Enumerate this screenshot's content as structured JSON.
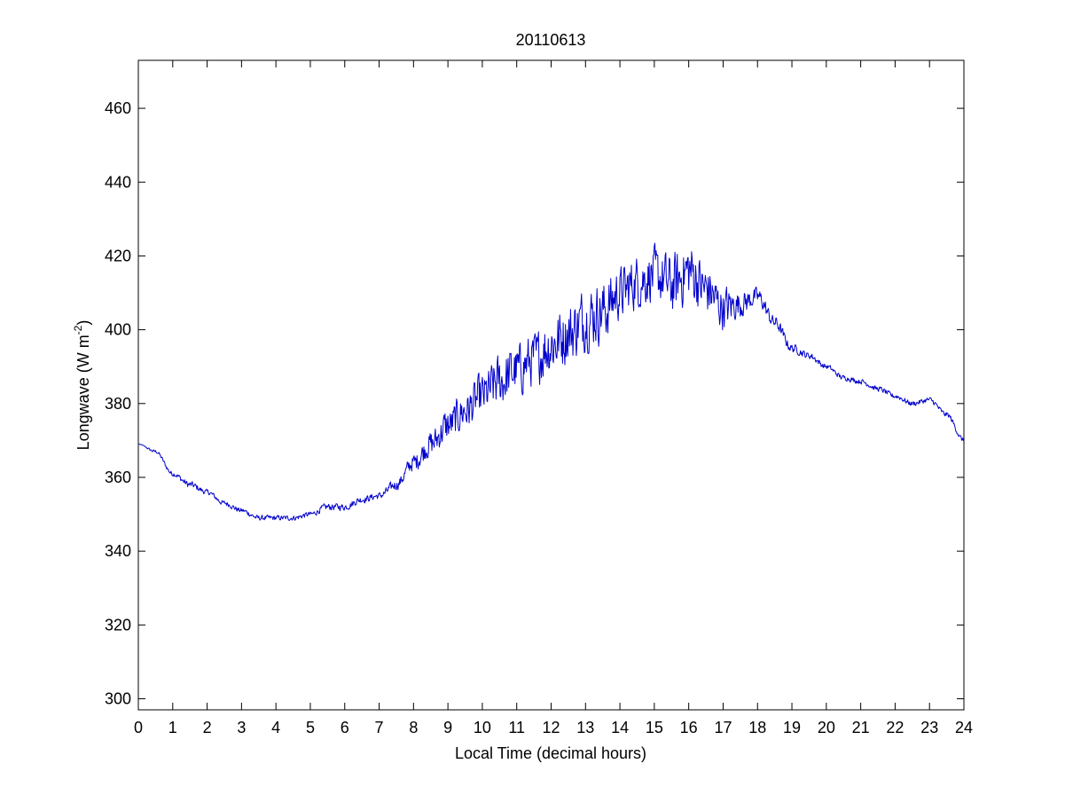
{
  "colors": {
    "background": "#ffffff",
    "axes": "#000000",
    "series": "#0000cc"
  },
  "chart_data": {
    "type": "line",
    "title": "20110613",
    "xlabel": "Local Time (decimal hours)",
    "ylabel": {
      "main": "Longwave (W m",
      "superscript": "-2",
      "suffix": ")"
    },
    "xlim": [
      0,
      24
    ],
    "ylim": [
      297,
      473
    ],
    "xticks": [
      0,
      1,
      2,
      3,
      4,
      5,
      6,
      7,
      8,
      9,
      10,
      11,
      12,
      13,
      14,
      15,
      16,
      17,
      18,
      19,
      20,
      21,
      22,
      23,
      24
    ],
    "yticks": [
      300,
      320,
      340,
      360,
      380,
      400,
      420,
      440,
      460
    ],
    "grid": false,
    "legend": "none",
    "series": [
      {
        "color": "#0000cc",
        "x": [
          0,
          0.5,
          1,
          1.5,
          2,
          2.5,
          3,
          3.5,
          4,
          4.5,
          5,
          5.5,
          6,
          6.5,
          7,
          7.5,
          8,
          8.5,
          9,
          9.5,
          10,
          10.5,
          11,
          11.5,
          12,
          12.5,
          13,
          13.5,
          14,
          14.5,
          15,
          15.5,
          16,
          16.5,
          17,
          17.5,
          18,
          18.5,
          19,
          19.5,
          20,
          20.5,
          21,
          21.5,
          22,
          22.5,
          23,
          23.5,
          24
        ],
        "y": [
          369,
          367,
          361,
          358,
          356,
          353,
          351,
          349,
          349,
          349,
          350,
          352,
          352,
          354,
          355,
          358,
          364,
          369,
          374,
          378,
          382,
          386,
          389,
          392,
          396,
          399,
          403,
          405,
          410,
          413,
          415,
          412,
          416,
          411,
          406,
          407,
          409,
          402,
          395,
          393,
          390,
          387,
          386,
          384,
          382,
          380,
          381,
          377,
          370
        ],
        "noise": [
          0,
          0.4,
          0.6,
          0.8,
          0.6,
          0.6,
          0.6,
          0.6,
          0.6,
          0.6,
          0.6,
          0.8,
          0.8,
          0.8,
          0.8,
          1.2,
          2,
          3,
          4,
          4.5,
          5,
          6,
          6,
          6,
          7,
          7,
          7,
          7,
          6,
          6,
          6,
          7,
          7,
          6,
          5,
          3,
          2,
          1.5,
          1,
          0.8,
          0.6,
          0.6,
          0.6,
          0.6,
          0.6,
          0.6,
          0.6,
          0.6,
          0.6
        ]
      }
    ]
  }
}
